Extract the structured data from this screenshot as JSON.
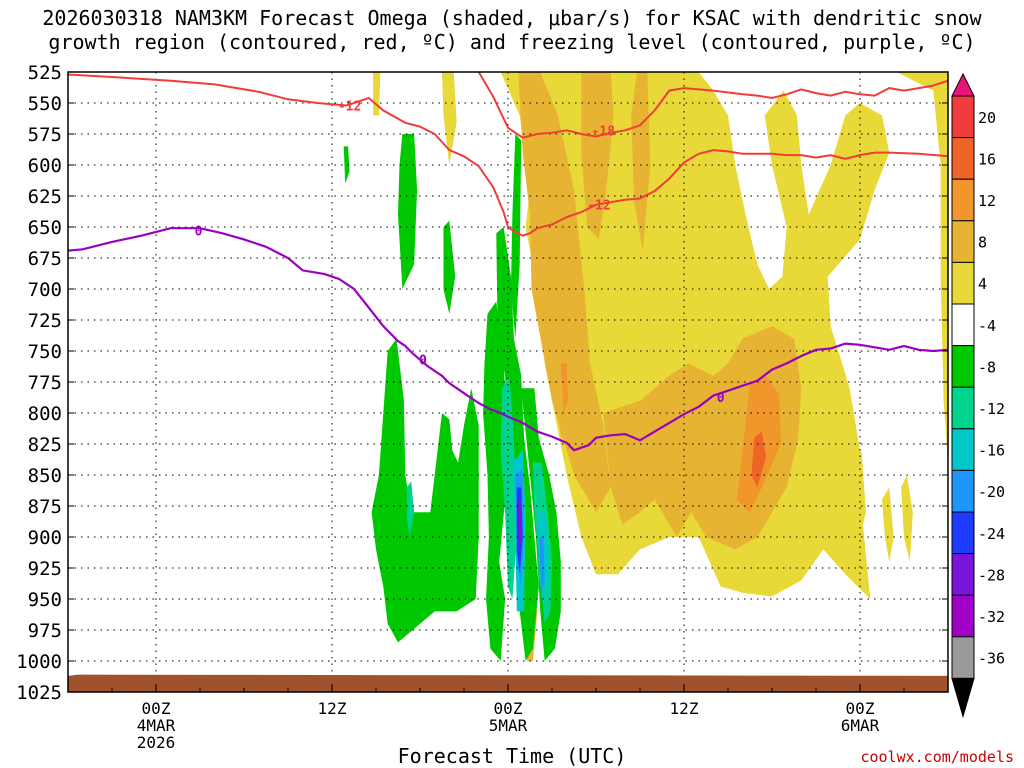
{
  "title_line1": "2026030318 NAM3KM Forecast Omega (shaded, μbar/s) for KSAC with dendritic snow",
  "title_line2": "growth region (contoured, red, ºC) and freezing level (contoured, purple, ºC)",
  "credit": "coolwx.com/models",
  "chart_data": {
    "type": "heatmap",
    "xlabel": "Forecast Time (UTC)",
    "ylabel": "",
    "x_range_hours": [
      -6,
      54
    ],
    "x_ticks": [
      {
        "hour": 0,
        "label": "00Z",
        "sub": "4MAR",
        "sub2": "2026"
      },
      {
        "hour": 12,
        "label": "12Z",
        "sub": "",
        "sub2": ""
      },
      {
        "hour": 24,
        "label": "00Z",
        "sub": "5MAR",
        "sub2": ""
      },
      {
        "hour": 36,
        "label": "12Z",
        "sub": "",
        "sub2": ""
      },
      {
        "hour": 48,
        "label": "00Z",
        "sub": "6MAR",
        "sub2": ""
      }
    ],
    "y_range_hpa": [
      525,
      1025
    ],
    "y_ticks": [
      "525",
      "550",
      "575",
      "600",
      "625",
      "650",
      "675",
      "700",
      "725",
      "750",
      "775",
      "800",
      "825",
      "850",
      "875",
      "900",
      "925",
      "950",
      "975",
      "1000",
      "1025"
    ],
    "grid": "dotted",
    "colorbar": {
      "labels": [
        "20",
        "16",
        "12",
        "8",
        "4",
        "-4",
        "-8",
        "-12",
        "-16",
        "-20",
        "-24",
        "-28",
        "-32",
        "-36"
      ],
      "colors": [
        "#e8147a",
        "#f03c3c",
        "#f06428",
        "#f0962a",
        "#e6b432",
        "#e8d838",
        "#ffffff",
        "#00c800",
        "#00d48c",
        "#00c8c8",
        "#1e96ff",
        "#1e3cff",
        "#7814dc",
        "#a000c8",
        "#9a9a9a",
        "#000000"
      ]
    },
    "contours": {
      "freezing_level_color": "#9a00c0",
      "dgz_color": "#f03c3c",
      "labels": [
        "0",
        "0",
        "0",
        "-12",
        "-18",
        "-12"
      ]
    },
    "omega_colors": {
      "pos4": "#e8d838",
      "pos8": "#e6b432",
      "pos12": "#f0962a",
      "pos16": "#f06428",
      "neg4": "#00c800",
      "neg8": "#00d48c",
      "neg12": "#00c8c8",
      "neg16": "#1e96ff",
      "neg20": "#1e3cff",
      "neg24": "#7814dc"
    },
    "ground_color": "#a0522d"
  }
}
